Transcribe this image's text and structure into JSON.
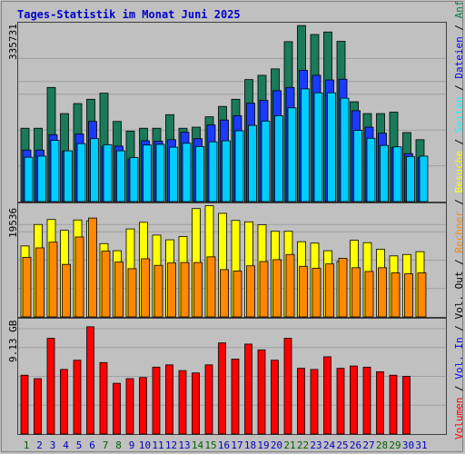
{
  "chart_data": [
    {
      "type": "bar",
      "title": "Tages-Statistik im Monat Juni 2025",
      "ytick": "335731",
      "categories": [
        "1",
        "2",
        "3",
        "4",
        "5",
        "6",
        "7",
        "8",
        "9",
        "10",
        "11",
        "12",
        "13",
        "14",
        "15",
        "16",
        "17",
        "18",
        "19",
        "20",
        "21",
        "22",
        "23",
        "24",
        "25",
        "26",
        "27",
        "28",
        "29",
        "30",
        "31"
      ],
      "category_colors": [
        "#006000",
        "#0000c0",
        "#0000c0",
        "#0000c0",
        "#0000c0",
        "#0000c0",
        "#006000",
        "#006000",
        "#0000c0",
        "#0000c0",
        "#0000c0",
        "#0000c0",
        "#0000c0",
        "#006000",
        "#006000",
        "#0000c0",
        "#0000c0",
        "#0000c0",
        "#0000c0",
        "#0000c0",
        "#006000",
        "#006000",
        "#0000c0",
        "#0000c0",
        "#0000c0",
        "#0000c0",
        "#0000c0",
        "#006000",
        "#006000",
        "#0000c0",
        "#0000c0"
      ],
      "legend_right": [
        "Anfragen",
        "Dateien",
        "Seiten"
      ],
      "series": [
        {
          "name": "Anfragen",
          "color": "#1a7a5a",
          "values": [
            205000,
            205000,
            319000,
            246000,
            274000,
            286000,
            303000,
            224000,
            197000,
            205000,
            205000,
            243000,
            205000,
            208000,
            237000,
            266000,
            286000,
            341000,
            353000,
            371000,
            447000,
            492000,
            467000,
            474000,
            448000,
            279000,
            246000,
            246000,
            250000,
            193000,
            173000
          ]
        },
        {
          "name": "Dateien",
          "color": "#1a3aff",
          "values": [
            144000,
            144000,
            187000,
            141000,
            189000,
            224000,
            154000,
            155000,
            119000,
            170000,
            169000,
            173000,
            194000,
            176000,
            214000,
            228000,
            240000,
            275000,
            283000,
            310000,
            319000,
            367000,
            353000,
            340000,
            342000,
            254000,
            208000,
            191000,
            151000,
            134000,
            123000
          ]
        },
        {
          "name": "Seiten",
          "color": "#00ccff",
          "values": [
            124000,
            127000,
            171000,
            142000,
            162000,
            176000,
            159000,
            142000,
            123000,
            158000,
            160000,
            152000,
            163000,
            154000,
            167000,
            170000,
            198000,
            213000,
            225000,
            240000,
            262000,
            315000,
            304000,
            304000,
            289000,
            199000,
            177000,
            157000,
            153000,
            126000,
            127000
          ]
        }
      ]
    },
    {
      "type": "bar",
      "ytick": "19536",
      "legend_right": [
        "Besuche",
        "Rechner"
      ],
      "series": [
        {
          "name": "Besuche",
          "color": "#ffff00",
          "values": [
            15000,
            19536,
            20600,
            18300,
            20500,
            20300,
            15500,
            14000,
            18600,
            20000,
            17300,
            16300,
            17000,
            22900,
            23500,
            21900,
            20400,
            20100,
            19500,
            18100,
            18100,
            15900,
            15600,
            14000,
            11700,
            16200,
            15700,
            14300,
            12900,
            13200,
            13800
          ]
        },
        {
          "name": "Rechner",
          "color": "#ff8800",
          "values": [
            12600,
            14600,
            15800,
            11100,
            16900,
            20900,
            13900,
            11600,
            10200,
            12300,
            10900,
            11400,
            11500,
            11500,
            12700,
            10000,
            9700,
            10800,
            11700,
            12100,
            13200,
            10700,
            10300,
            11200,
            12400,
            10400,
            9600,
            10400,
            9300,
            9100,
            9300
          ]
        }
      ]
    },
    {
      "type": "bar",
      "ytick": "9.13 GB",
      "legend_right": [
        "Volumen",
        "Vol. In",
        "Vol. Out"
      ],
      "series": [
        {
          "name": "Volumen",
          "color": "#ff0000",
          "values": [
            5.1,
            4.8,
            8.3,
            5.6,
            6.4,
            9.3,
            6.2,
            4.4,
            4.8,
            4.9,
            5.8,
            6.0,
            5.5,
            5.3,
            6.0,
            7.9,
            6.5,
            7.8,
            7.3,
            6.4,
            8.3,
            5.7,
            5.6,
            6.7,
            5.7,
            5.9,
            5.8,
            5.4,
            5.1,
            5.0,
            0
          ]
        }
      ]
    }
  ]
}
